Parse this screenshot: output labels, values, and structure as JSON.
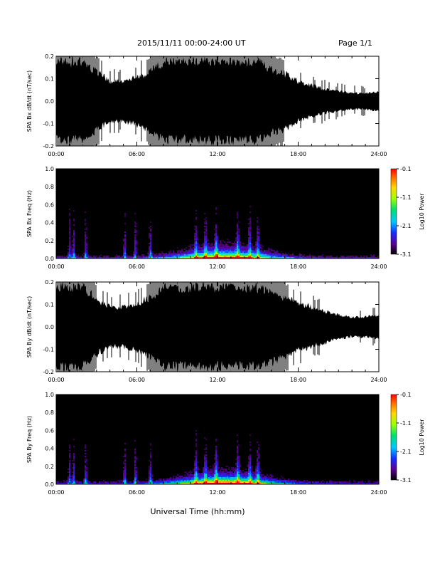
{
  "header": {
    "title": "2015/11/11  00:00-24:00 UT",
    "page": "Page 1/1"
  },
  "xlabel": "Universal Time (hh:mm)",
  "chart_data": [
    {
      "type": "line",
      "ylabel": "SPA Bx dB/dt (nT/sec)",
      "xlim": [
        "00:00",
        "24:00"
      ],
      "ylim": [
        -0.2,
        0.2
      ],
      "x_ticks": [
        "00:00",
        "06:00",
        "12:00",
        "18:00",
        "24:00"
      ],
      "y_ticks": [
        "-0.2",
        "-0.1",
        "0.0",
        "0.1",
        "0.2"
      ],
      "envelope_hours": [
        0,
        1,
        2,
        3,
        4,
        5,
        6,
        7,
        8,
        9,
        10,
        11,
        12,
        13,
        14,
        15,
        16,
        17,
        18,
        19,
        20,
        21,
        22,
        23,
        24
      ],
      "envelope_amplitude": [
        0.2,
        0.2,
        0.2,
        0.15,
        0.1,
        0.1,
        0.12,
        0.15,
        0.2,
        0.2,
        0.2,
        0.2,
        0.2,
        0.2,
        0.2,
        0.2,
        0.16,
        0.14,
        0.1,
        0.08,
        0.06,
        0.05,
        0.04,
        0.04,
        0.05
      ]
    },
    {
      "type": "heatmap",
      "ylabel": "SPA Bx Freq (Hz)",
      "xlim": [
        "00:00",
        "24:00"
      ],
      "ylim": [
        0.0,
        1.0
      ],
      "x_ticks": [
        "00:00",
        "06:00",
        "12:00",
        "18:00",
        "24:00"
      ],
      "y_ticks": [
        "0.0",
        "0.2",
        "0.4",
        "0.6",
        "0.8",
        "1.0"
      ],
      "colorbar": {
        "label": "Log10 Power",
        "range": [
          -3.1,
          -0.1
        ],
        "ticks": [
          "-0.1",
          "-1.1",
          "-2.1",
          "-3.1"
        ]
      },
      "activity_hours": [
        1.0,
        1.3,
        2.2,
        5.1,
        5.9,
        7.0,
        10.4,
        11.1,
        11.9,
        13.5,
        14.4,
        15.0
      ]
    },
    {
      "type": "line",
      "ylabel": "SPA By dB/dt (nT/sec)",
      "xlim": [
        "00:00",
        "24:00"
      ],
      "ylim": [
        -0.2,
        0.2
      ],
      "x_ticks": [
        "00:00",
        "06:00",
        "12:00",
        "18:00",
        "24:00"
      ],
      "y_ticks": [
        "-0.2",
        "-0.1",
        "0.0",
        "0.1",
        "0.2"
      ],
      "envelope_hours": [
        0,
        1,
        2,
        3,
        4,
        5,
        6,
        7,
        8,
        9,
        10,
        11,
        12,
        13,
        14,
        15,
        16,
        17,
        18,
        19,
        20,
        21,
        22,
        23,
        24
      ],
      "envelope_amplitude": [
        0.2,
        0.2,
        0.2,
        0.14,
        0.1,
        0.1,
        0.12,
        0.15,
        0.2,
        0.2,
        0.2,
        0.2,
        0.2,
        0.2,
        0.2,
        0.2,
        0.18,
        0.15,
        0.12,
        0.1,
        0.08,
        0.06,
        0.05,
        0.05,
        0.06
      ]
    },
    {
      "type": "heatmap",
      "ylabel": "SPA By Freq (Hz)",
      "xlim": [
        "00:00",
        "24:00"
      ],
      "ylim": [
        0.0,
        1.0
      ],
      "x_ticks": [
        "00:00",
        "06:00",
        "12:00",
        "18:00",
        "24:00"
      ],
      "y_ticks": [
        "0.0",
        "0.2",
        "0.4",
        "0.6",
        "0.8",
        "1.0"
      ],
      "colorbar": {
        "label": "Log10 Power",
        "range": [
          -3.1,
          -0.1
        ],
        "ticks": [
          "-0.1",
          "-1.1",
          "-2.1",
          "-3.1"
        ]
      },
      "activity_hours": [
        1.0,
        1.3,
        2.2,
        5.1,
        5.9,
        7.0,
        10.4,
        11.1,
        11.9,
        13.5,
        14.4,
        15.0
      ]
    }
  ]
}
